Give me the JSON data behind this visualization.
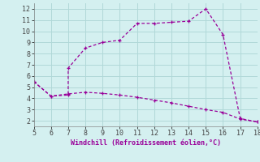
{
  "xlabel": "Windchill (Refroidissement éolien,°C)",
  "x_line1": [
    5,
    6,
    7,
    7,
    8,
    9,
    10,
    11,
    12,
    13,
    14,
    15,
    16,
    17,
    18
  ],
  "y_line1": [
    5.5,
    4.2,
    4.3,
    6.7,
    8.5,
    9.0,
    9.2,
    10.7,
    10.7,
    10.8,
    10.9,
    12.0,
    9.7,
    2.2,
    1.9
  ],
  "x_line2": [
    5,
    6,
    7,
    8,
    9,
    10,
    11,
    12,
    13,
    14,
    15,
    16,
    17,
    18
  ],
  "y_line2": [
    5.5,
    4.2,
    4.4,
    4.55,
    4.45,
    4.3,
    4.1,
    3.85,
    3.6,
    3.3,
    3.0,
    2.75,
    2.15,
    1.9
  ],
  "line_color": "#990099",
  "bg_color": "#d4f0f0",
  "grid_color": "#b0d8d8",
  "xlim": [
    5,
    18
  ],
  "ylim": [
    1.5,
    12.5
  ],
  "xticks": [
    5,
    6,
    7,
    8,
    9,
    10,
    11,
    12,
    13,
    14,
    15,
    16,
    17,
    18
  ],
  "yticks": [
    2,
    3,
    4,
    5,
    6,
    7,
    8,
    9,
    10,
    11,
    12
  ]
}
